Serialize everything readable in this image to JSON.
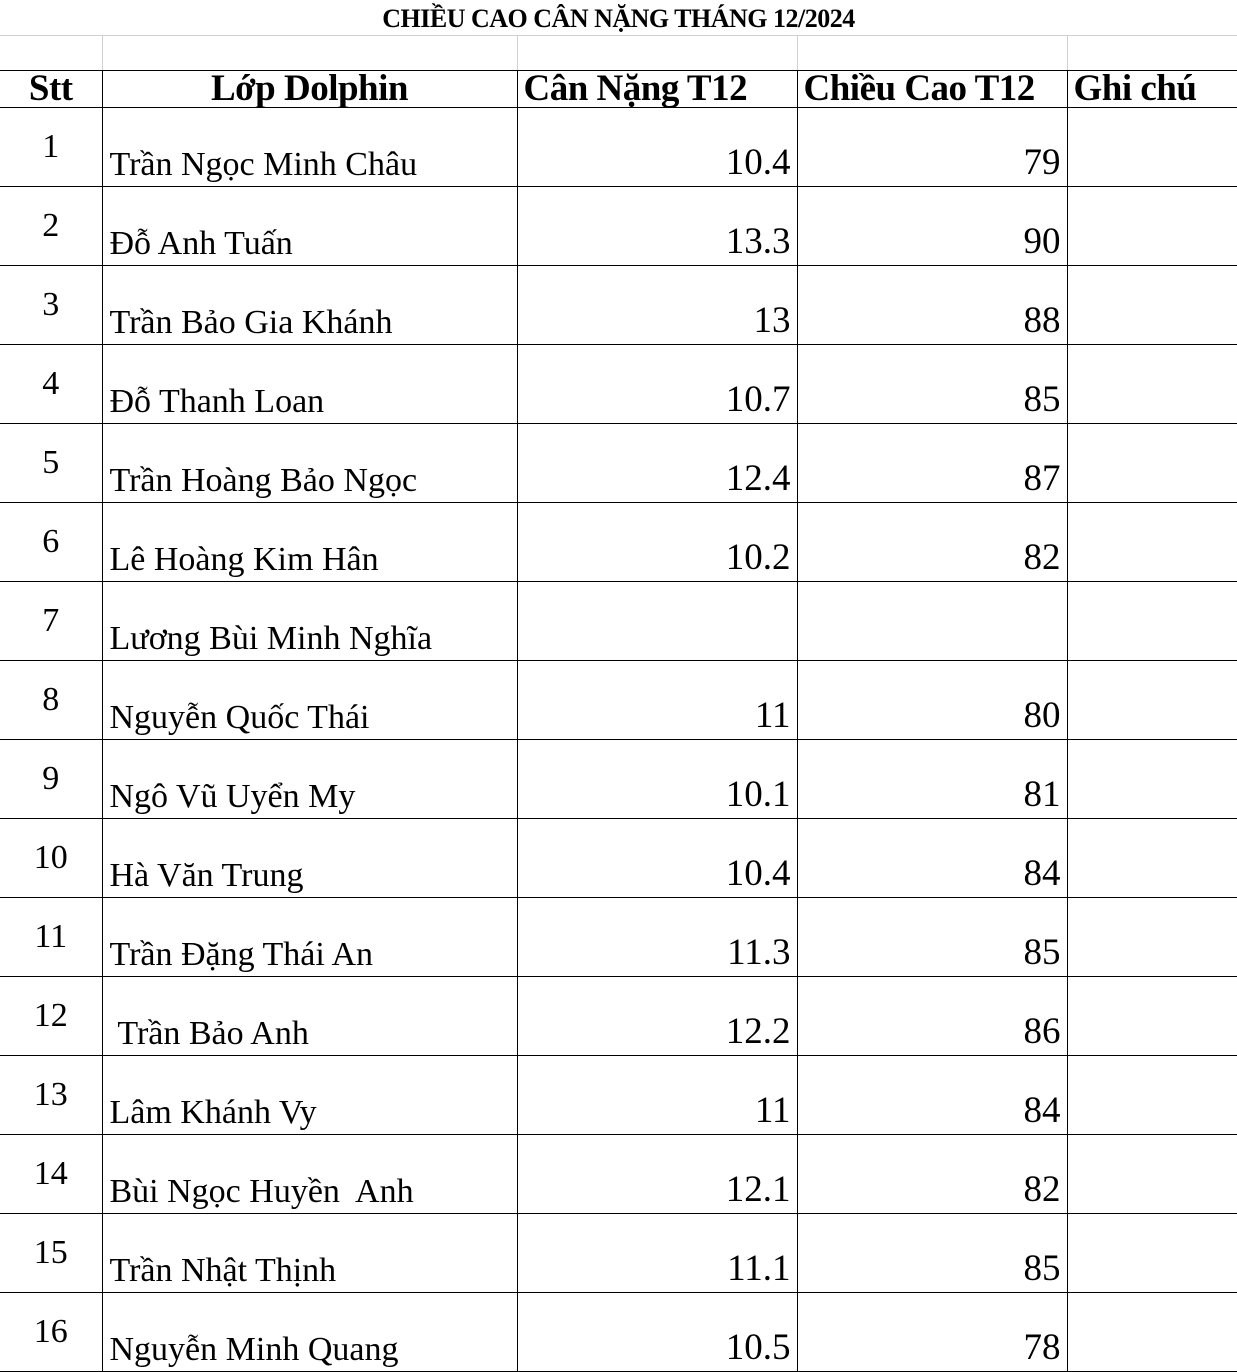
{
  "title": "CHIỀU CAO CÂN NẶNG THÁNG 12/2024",
  "columns": [
    "Stt",
    "Lớp Dolphin",
    "Cân Nặng T12",
    "Chiều Cao T12",
    "Ghi chú"
  ],
  "rows": [
    {
      "stt": "1",
      "name": "Trần Ngọc Minh Châu",
      "weight": "10.4",
      "height": "79",
      "note": ""
    },
    {
      "stt": "2",
      "name": "Đỗ Anh Tuấn",
      "weight": "13.3",
      "height": "90",
      "note": ""
    },
    {
      "stt": "3",
      "name": "Trần Bảo Gia Khánh",
      "weight": "13",
      "height": "88",
      "note": ""
    },
    {
      "stt": "4",
      "name": "Đỗ Thanh Loan",
      "weight": "10.7",
      "height": "85",
      "note": ""
    },
    {
      "stt": "5",
      "name": "Trần Hoàng Bảo Ngọc",
      "weight": "12.4",
      "height": "87",
      "note": ""
    },
    {
      "stt": "6",
      "name": "Lê Hoàng Kim Hân",
      "weight": "10.2",
      "height": "82",
      "note": ""
    },
    {
      "stt": "7",
      "name": "Lương Bùi Minh Nghĩa",
      "weight": "",
      "height": "",
      "note": ""
    },
    {
      "stt": "8",
      "name": "Nguyễn Quốc Thái",
      "weight": "11",
      "height": "80",
      "note": ""
    },
    {
      "stt": "9",
      "name": "Ngô Vũ Uyển My",
      "weight": "10.1",
      "height": "81",
      "note": ""
    },
    {
      "stt": "10",
      "name": "Hà Văn Trung",
      "weight": "10.4",
      "height": "84",
      "note": ""
    },
    {
      "stt": "11",
      "name": "Trần Đặng Thái An",
      "weight": "11.3",
      "height": "85",
      "note": ""
    },
    {
      "stt": "12",
      "name": " Trần Bảo Anh",
      "weight": "12.2",
      "height": "86",
      "note": ""
    },
    {
      "stt": "13",
      "name": "Lâm Khánh Vy",
      "weight": "11",
      "height": "84",
      "note": ""
    },
    {
      "stt": "14",
      "name": "Bùi Ngọc Huyền  Anh",
      "weight": "12.1",
      "height": "82",
      "note": ""
    },
    {
      "stt": "15",
      "name": "Trần Nhật Thịnh",
      "weight": "11.1",
      "height": "85",
      "note": ""
    },
    {
      "stt": "16",
      "name": "Nguyễn Minh Quang",
      "weight": "10.5",
      "height": "78",
      "note": ""
    }
  ]
}
